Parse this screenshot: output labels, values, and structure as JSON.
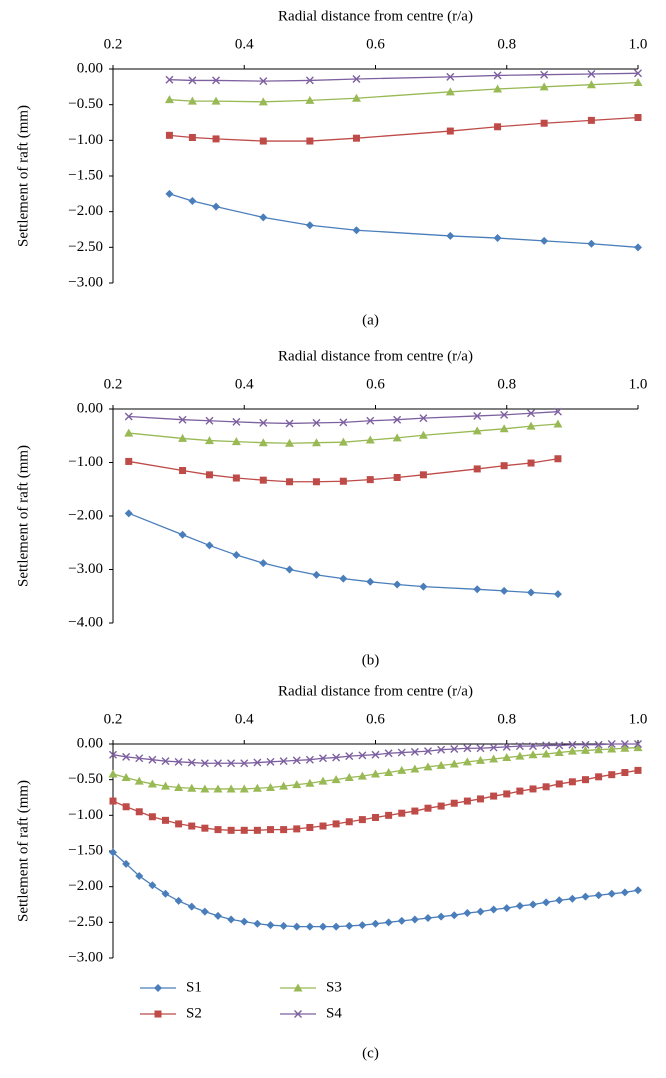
{
  "chart_data": [
    {
      "type": "line",
      "title": "Radial distance from centre (r/a)",
      "y_label": "Settlement of raft (mm)",
      "caption": "(a)",
      "x": [
        0.286,
        0.321,
        0.357,
        0.429,
        0.5,
        0.571,
        0.714,
        0.786,
        0.857,
        0.929,
        1.0
      ],
      "series": [
        {
          "color": "#4a7ebb",
          "marker": "diamond",
          "values": [
            -1.75,
            -1.85,
            -1.93,
            -2.08,
            -2.19,
            -2.26,
            -2.34,
            -2.37,
            -2.41,
            -2.45,
            -2.5
          ]
        },
        {
          "color": "#be4b48",
          "marker": "square",
          "values": [
            -0.93,
            -0.96,
            -0.98,
            -1.01,
            -1.01,
            -0.97,
            -0.87,
            -0.81,
            -0.76,
            -0.72,
            -0.68
          ]
        },
        {
          "color": "#98b954",
          "marker": "triangle",
          "values": [
            -0.43,
            -0.45,
            -0.45,
            -0.46,
            -0.44,
            -0.41,
            -0.32,
            -0.28,
            -0.25,
            -0.22,
            -0.19
          ]
        },
        {
          "color": "#7d60a0",
          "marker": "x",
          "values": [
            -0.15,
            -0.16,
            -0.16,
            -0.17,
            -0.16,
            -0.14,
            -0.11,
            -0.09,
            -0.08,
            -0.07,
            -0.06
          ]
        }
      ],
      "xlim": [
        0.2,
        1.0
      ],
      "xticks": [
        0.2,
        0.4,
        0.6,
        0.8,
        {
          "value": 1,
          "label": "1.0"
        }
      ],
      "ylim": [
        -3,
        0
      ],
      "yticks": [
        {
          "value": 0,
          "label": "0.00"
        },
        {
          "value": -0.5,
          "label": "−0.50"
        },
        {
          "value": -1,
          "label": "−1.00"
        },
        {
          "value": -1.5,
          "label": "−1.50"
        },
        {
          "value": -2,
          "label": "−2.00"
        },
        {
          "value": -2.5,
          "label": "−2.50"
        },
        {
          "value": -3,
          "label": "−3.00"
        }
      ]
    },
    {
      "type": "line",
      "title": "Radial distance from centre (r/a)",
      "y_label": "Settlement of raft (mm)",
      "caption": "(b)",
      "x": [
        0.224,
        0.306,
        0.347,
        0.388,
        0.429,
        0.469,
        0.51,
        0.551,
        0.592,
        0.633,
        0.673,
        0.755,
        0.796,
        0.837,
        0.878
      ],
      "series": [
        {
          "color": "#4a7ebb",
          "marker": "diamond",
          "values": [
            -1.95,
            -2.35,
            -2.55,
            -2.73,
            -2.88,
            -3.0,
            -3.1,
            -3.17,
            -3.23,
            -3.28,
            -3.32,
            -3.37,
            -3.4,
            -3.43,
            -3.46
          ]
        },
        {
          "color": "#be4b48",
          "marker": "square",
          "values": [
            -0.98,
            -1.15,
            -1.23,
            -1.29,
            -1.33,
            -1.36,
            -1.36,
            -1.35,
            -1.32,
            -1.28,
            -1.23,
            -1.12,
            -1.06,
            -1.01,
            -0.93
          ]
        },
        {
          "color": "#98b954",
          "marker": "triangle",
          "values": [
            -0.45,
            -0.55,
            -0.59,
            -0.61,
            -0.63,
            -0.64,
            -0.63,
            -0.62,
            -0.58,
            -0.54,
            -0.49,
            -0.41,
            -0.37,
            -0.32,
            -0.28
          ]
        },
        {
          "color": "#7d60a0",
          "marker": "x",
          "values": [
            -0.14,
            -0.2,
            -0.22,
            -0.24,
            -0.26,
            -0.27,
            -0.26,
            -0.25,
            -0.22,
            -0.2,
            -0.17,
            -0.13,
            -0.11,
            -0.08,
            -0.05
          ]
        }
      ],
      "xlim": [
        0.2,
        1.0
      ],
      "xticks": [
        0.2,
        0.4,
        0.6,
        0.8,
        {
          "value": 1,
          "label": "1.0"
        }
      ],
      "ylim": [
        -4,
        0
      ],
      "yticks": [
        {
          "value": 0,
          "label": "0.00"
        },
        {
          "value": -1,
          "label": "−1.00"
        },
        {
          "value": -2,
          "label": "−2.00"
        },
        {
          "value": -3,
          "label": "−3.00"
        },
        {
          "value": -4,
          "label": "−4.00"
        }
      ]
    },
    {
      "type": "line",
      "title": "Radial distance from centre (r/a)",
      "y_label": "Settlement of raft (mm)",
      "caption": "(c)",
      "legend": "bottom",
      "x": [
        0.2,
        0.22,
        0.24,
        0.26,
        0.28,
        0.3,
        0.32,
        0.34,
        0.36,
        0.38,
        0.4,
        0.42,
        0.44,
        0.46,
        0.48,
        0.5,
        0.52,
        0.54,
        0.56,
        0.58,
        0.6,
        0.62,
        0.64,
        0.66,
        0.68,
        0.7,
        0.72,
        0.74,
        0.76,
        0.78,
        0.8,
        0.82,
        0.84,
        0.86,
        0.88,
        0.9,
        0.92,
        0.94,
        0.96,
        0.98,
        1.0
      ],
      "series": [
        {
          "name": "S1",
          "color": "#4a7ebb",
          "marker": "diamond",
          "values": [
            -1.52,
            -1.68,
            -1.85,
            -1.98,
            -2.1,
            -2.2,
            -2.28,
            -2.35,
            -2.41,
            -2.46,
            -2.49,
            -2.52,
            -2.54,
            -2.55,
            -2.56,
            -2.56,
            -2.56,
            -2.56,
            -2.55,
            -2.54,
            -2.52,
            -2.5,
            -2.48,
            -2.46,
            -2.44,
            -2.42,
            -2.4,
            -2.37,
            -2.35,
            -2.32,
            -2.3,
            -2.27,
            -2.25,
            -2.22,
            -2.19,
            -2.17,
            -2.14,
            -2.12,
            -2.1,
            -2.08,
            -2.05
          ]
        },
        {
          "name": "S2",
          "color": "#be4b48",
          "marker": "square",
          "values": [
            -0.8,
            -0.88,
            -0.95,
            -1.02,
            -1.07,
            -1.12,
            -1.15,
            -1.18,
            -1.2,
            -1.21,
            -1.21,
            -1.21,
            -1.2,
            -1.2,
            -1.19,
            -1.17,
            -1.15,
            -1.12,
            -1.09,
            -1.06,
            -1.03,
            -1.0,
            -0.97,
            -0.94,
            -0.9,
            -0.87,
            -0.83,
            -0.8,
            -0.77,
            -0.73,
            -0.7,
            -0.66,
            -0.63,
            -0.6,
            -0.56,
            -0.53,
            -0.5,
            -0.46,
            -0.43,
            -0.4,
            -0.37
          ]
        },
        {
          "name": "S3",
          "color": "#98b954",
          "marker": "triangle",
          "values": [
            -0.42,
            -0.47,
            -0.52,
            -0.56,
            -0.59,
            -0.61,
            -0.62,
            -0.63,
            -0.63,
            -0.63,
            -0.63,
            -0.62,
            -0.61,
            -0.59,
            -0.57,
            -0.55,
            -0.52,
            -0.5,
            -0.47,
            -0.45,
            -0.42,
            -0.4,
            -0.37,
            -0.35,
            -0.32,
            -0.3,
            -0.28,
            -0.25,
            -0.23,
            -0.21,
            -0.19,
            -0.17,
            -0.15,
            -0.14,
            -0.12,
            -0.1,
            -0.09,
            -0.08,
            -0.07,
            -0.06,
            -0.05
          ]
        },
        {
          "name": "S4",
          "color": "#7d60a0",
          "marker": "x",
          "values": [
            -0.15,
            -0.18,
            -0.2,
            -0.22,
            -0.24,
            -0.25,
            -0.26,
            -0.27,
            -0.27,
            -0.27,
            -0.27,
            -0.26,
            -0.25,
            -0.24,
            -0.23,
            -0.22,
            -0.2,
            -0.19,
            -0.17,
            -0.16,
            -0.15,
            -0.13,
            -0.12,
            -0.11,
            -0.1,
            -0.08,
            -0.07,
            -0.06,
            -0.06,
            -0.05,
            -0.04,
            -0.03,
            -0.03,
            -0.02,
            -0.02,
            -0.01,
            -0.01,
            -0.01,
            0,
            0,
            0
          ]
        }
      ],
      "xlim": [
        0.2,
        1.0
      ],
      "xticks": [
        0.2,
        0.4,
        0.6,
        0.8,
        {
          "value": 1,
          "label": "1.0"
        }
      ],
      "ylim": [
        -3,
        0
      ],
      "yticks": [
        {
          "value": 0,
          "label": "0.00"
        },
        {
          "value": -0.5,
          "label": "−0.50"
        },
        {
          "value": -1,
          "label": "−1.00"
        },
        {
          "value": -1.5,
          "label": "−1.50"
        },
        {
          "value": -2,
          "label": "−2.00"
        },
        {
          "value": -2.5,
          "label": "−2.50"
        },
        {
          "value": -3,
          "label": "−3.00"
        }
      ]
    }
  ]
}
